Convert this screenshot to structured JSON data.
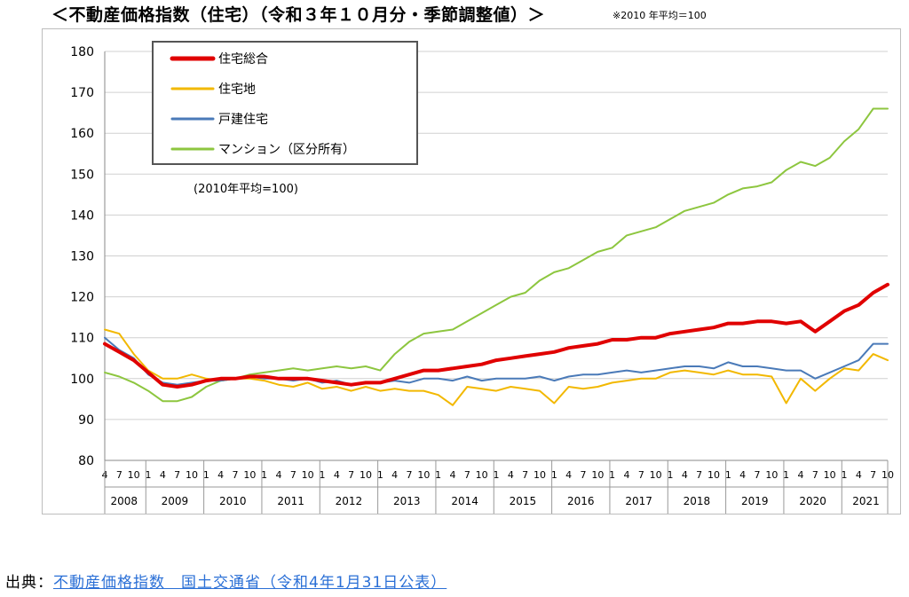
{
  "header": {
    "title": "＜不動産価格指数（住宅）（令和３年１０月分・季節調整値）＞",
    "note": "※2010 年平均＝100"
  },
  "footer": {
    "source_label": "出典：",
    "source_link": "不動産価格指数　国土交通省（令和4年1月31日公表）"
  },
  "chart_data": {
    "type": "line",
    "title": "",
    "annotation": "(2010年平均=100)",
    "xlabel": "",
    "ylabel": "",
    "ylim": [
      80,
      180
    ],
    "yticks": [
      80,
      90,
      100,
      110,
      120,
      130,
      140,
      150,
      160,
      170,
      180
    ],
    "grid": true,
    "legend_position": "top-left",
    "x_start": "2008-04",
    "x_end": "2021-10",
    "month_tick_labels": [
      "4",
      "7",
      "10",
      "1"
    ],
    "year_labels": [
      "2008",
      "2009",
      "2010",
      "2011",
      "2012",
      "2013",
      "2014",
      "2015",
      "2016",
      "2017",
      "2018",
      "2019",
      "2020",
      "2021"
    ],
    "series": [
      {
        "name": "住宅総合",
        "color": "#e00000",
        "width": 4,
        "points": [
          [
            "2008-04",
            108.5
          ],
          [
            "2008-07",
            106.5
          ],
          [
            "2008-10",
            104.5
          ],
          [
            "2009-01",
            101.5
          ],
          [
            "2009-04",
            98.5
          ],
          [
            "2009-07",
            98
          ],
          [
            "2009-10",
            98.5
          ],
          [
            "2010-01",
            99.5
          ],
          [
            "2010-04",
            100
          ],
          [
            "2010-07",
            100
          ],
          [
            "2010-10",
            100.5
          ],
          [
            "2011-01",
            100.5
          ],
          [
            "2011-04",
            100
          ],
          [
            "2011-07",
            100
          ],
          [
            "2011-10",
            100
          ],
          [
            "2012-01",
            99.5
          ],
          [
            "2012-04",
            99
          ],
          [
            "2012-07",
            98.5
          ],
          [
            "2012-10",
            99
          ],
          [
            "2013-01",
            99
          ],
          [
            "2013-04",
            100
          ],
          [
            "2013-07",
            101
          ],
          [
            "2013-10",
            102
          ],
          [
            "2014-01",
            102
          ],
          [
            "2014-04",
            102.5
          ],
          [
            "2014-07",
            103
          ],
          [
            "2014-10",
            103.5
          ],
          [
            "2015-01",
            104.5
          ],
          [
            "2015-04",
            105
          ],
          [
            "2015-07",
            105.5
          ],
          [
            "2015-10",
            106
          ],
          [
            "2016-01",
            106.5
          ],
          [
            "2016-04",
            107.5
          ],
          [
            "2016-07",
            108
          ],
          [
            "2016-10",
            108.5
          ],
          [
            "2017-01",
            109.5
          ],
          [
            "2017-04",
            109.5
          ],
          [
            "2017-07",
            110
          ],
          [
            "2017-10",
            110
          ],
          [
            "2018-01",
            111
          ],
          [
            "2018-04",
            111.5
          ],
          [
            "2018-07",
            112
          ],
          [
            "2018-10",
            112.5
          ],
          [
            "2019-01",
            113.5
          ],
          [
            "2019-04",
            113.5
          ],
          [
            "2019-07",
            114
          ],
          [
            "2019-10",
            114
          ],
          [
            "2020-01",
            113.5
          ],
          [
            "2020-04",
            114
          ],
          [
            "2020-07",
            111.5
          ],
          [
            "2020-10",
            114
          ],
          [
            "2021-01",
            116.5
          ],
          [
            "2021-04",
            118
          ],
          [
            "2021-07",
            121
          ],
          [
            "2021-10",
            123
          ]
        ]
      },
      {
        "name": "住宅地",
        "color": "#f2b800",
        "width": 2,
        "points": [
          [
            "2008-04",
            112
          ],
          [
            "2008-07",
            111
          ],
          [
            "2008-10",
            106
          ],
          [
            "2009-01",
            102
          ],
          [
            "2009-04",
            100
          ],
          [
            "2009-07",
            100
          ],
          [
            "2009-10",
            101
          ],
          [
            "2010-01",
            100
          ],
          [
            "2010-04",
            99.5
          ],
          [
            "2010-07",
            100
          ],
          [
            "2010-10",
            100
          ],
          [
            "2011-01",
            99.5
          ],
          [
            "2011-04",
            98.5
          ],
          [
            "2011-07",
            98
          ],
          [
            "2011-10",
            99
          ],
          [
            "2012-01",
            97.5
          ],
          [
            "2012-04",
            98
          ],
          [
            "2012-07",
            97
          ],
          [
            "2012-10",
            98
          ],
          [
            "2013-01",
            97
          ],
          [
            "2013-04",
            97.5
          ],
          [
            "2013-07",
            97
          ],
          [
            "2013-10",
            97
          ],
          [
            "2014-01",
            96
          ],
          [
            "2014-04",
            93.5
          ],
          [
            "2014-07",
            98
          ],
          [
            "2014-10",
            97.5
          ],
          [
            "2015-01",
            97
          ],
          [
            "2015-04",
            98
          ],
          [
            "2015-07",
            97.5
          ],
          [
            "2015-10",
            97
          ],
          [
            "2016-01",
            94
          ],
          [
            "2016-04",
            98
          ],
          [
            "2016-07",
            97.5
          ],
          [
            "2016-10",
            98
          ],
          [
            "2017-01",
            99
          ],
          [
            "2017-04",
            99.5
          ],
          [
            "2017-07",
            100
          ],
          [
            "2017-10",
            100
          ],
          [
            "2018-01",
            101.5
          ],
          [
            "2018-04",
            102
          ],
          [
            "2018-07",
            101.5
          ],
          [
            "2018-10",
            101
          ],
          [
            "2019-01",
            102
          ],
          [
            "2019-04",
            101
          ],
          [
            "2019-07",
            101
          ],
          [
            "2019-10",
            100.5
          ],
          [
            "2020-01",
            94
          ],
          [
            "2020-04",
            100
          ],
          [
            "2020-07",
            97
          ],
          [
            "2020-10",
            100
          ],
          [
            "2021-01",
            102.5
          ],
          [
            "2021-04",
            102
          ],
          [
            "2021-07",
            106
          ],
          [
            "2021-10",
            104.5
          ]
        ]
      },
      {
        "name": "戸建住宅",
        "color": "#4a7ab8",
        "width": 2,
        "points": [
          [
            "2008-04",
            110
          ],
          [
            "2008-07",
            107
          ],
          [
            "2008-10",
            105
          ],
          [
            "2009-01",
            101
          ],
          [
            "2009-04",
            99
          ],
          [
            "2009-07",
            98.5
          ],
          [
            "2009-10",
            99
          ],
          [
            "2010-01",
            99.5
          ],
          [
            "2010-04",
            99.5
          ],
          [
            "2010-07",
            100
          ],
          [
            "2010-10",
            100.5
          ],
          [
            "2011-01",
            100
          ],
          [
            "2011-04",
            100
          ],
          [
            "2011-07",
            99.5
          ],
          [
            "2011-10",
            100
          ],
          [
            "2012-01",
            99
          ],
          [
            "2012-04",
            99.5
          ],
          [
            "2012-07",
            98.5
          ],
          [
            "2012-10",
            99
          ],
          [
            "2013-01",
            99
          ],
          [
            "2013-04",
            99.5
          ],
          [
            "2013-07",
            99
          ],
          [
            "2013-10",
            100
          ],
          [
            "2014-01",
            100
          ],
          [
            "2014-04",
            99.5
          ],
          [
            "2014-07",
            100.5
          ],
          [
            "2014-10",
            99.5
          ],
          [
            "2015-01",
            100
          ],
          [
            "2015-04",
            100
          ],
          [
            "2015-07",
            100
          ],
          [
            "2015-10",
            100.5
          ],
          [
            "2016-01",
            99.5
          ],
          [
            "2016-04",
            100.5
          ],
          [
            "2016-07",
            101
          ],
          [
            "2016-10",
            101
          ],
          [
            "2017-01",
            101.5
          ],
          [
            "2017-04",
            102
          ],
          [
            "2017-07",
            101.5
          ],
          [
            "2017-10",
            102
          ],
          [
            "2018-01",
            102.5
          ],
          [
            "2018-04",
            103
          ],
          [
            "2018-07",
            103
          ],
          [
            "2018-10",
            102.5
          ],
          [
            "2019-01",
            104
          ],
          [
            "2019-04",
            103
          ],
          [
            "2019-07",
            103
          ],
          [
            "2019-10",
            102.5
          ],
          [
            "2020-01",
            102
          ],
          [
            "2020-04",
            102
          ],
          [
            "2020-07",
            100
          ],
          [
            "2020-10",
            101.5
          ],
          [
            "2021-01",
            103
          ],
          [
            "2021-04",
            104.5
          ],
          [
            "2021-07",
            108.5
          ],
          [
            "2021-10",
            108.5
          ]
        ]
      },
      {
        "name": "マンション（区分所有）",
        "color": "#8dc63f",
        "width": 2,
        "points": [
          [
            "2008-04",
            101.5
          ],
          [
            "2008-07",
            100.5
          ],
          [
            "2008-10",
            99
          ],
          [
            "2009-01",
            97
          ],
          [
            "2009-04",
            94.5
          ],
          [
            "2009-07",
            94.5
          ],
          [
            "2009-10",
            95.5
          ],
          [
            "2010-01",
            98
          ],
          [
            "2010-04",
            99.5
          ],
          [
            "2010-07",
            100
          ],
          [
            "2010-10",
            101
          ],
          [
            "2011-01",
            101.5
          ],
          [
            "2011-04",
            102
          ],
          [
            "2011-07",
            102.5
          ],
          [
            "2011-10",
            102
          ],
          [
            "2012-01",
            102.5
          ],
          [
            "2012-04",
            103
          ],
          [
            "2012-07",
            102.5
          ],
          [
            "2012-10",
            103
          ],
          [
            "2013-01",
            102
          ],
          [
            "2013-04",
            106
          ],
          [
            "2013-07",
            109
          ],
          [
            "2013-10",
            111
          ],
          [
            "2014-01",
            111.5
          ],
          [
            "2014-04",
            112
          ],
          [
            "2014-07",
            114
          ],
          [
            "2014-10",
            116
          ],
          [
            "2015-01",
            118
          ],
          [
            "2015-04",
            120
          ],
          [
            "2015-07",
            121
          ],
          [
            "2015-10",
            124
          ],
          [
            "2016-01",
            126
          ],
          [
            "2016-04",
            127
          ],
          [
            "2016-07",
            129
          ],
          [
            "2016-10",
            131
          ],
          [
            "2017-01",
            132
          ],
          [
            "2017-04",
            135
          ],
          [
            "2017-07",
            136
          ],
          [
            "2017-10",
            137
          ],
          [
            "2018-01",
            139
          ],
          [
            "2018-04",
            141
          ],
          [
            "2018-07",
            142
          ],
          [
            "2018-10",
            143
          ],
          [
            "2019-01",
            145
          ],
          [
            "2019-04",
            146.5
          ],
          [
            "2019-07",
            147
          ],
          [
            "2019-10",
            148
          ],
          [
            "2020-01",
            151
          ],
          [
            "2020-04",
            153
          ],
          [
            "2020-07",
            152
          ],
          [
            "2020-10",
            154
          ],
          [
            "2021-01",
            158
          ],
          [
            "2021-04",
            161
          ],
          [
            "2021-07",
            166
          ],
          [
            "2021-10",
            166
          ]
        ]
      }
    ]
  }
}
